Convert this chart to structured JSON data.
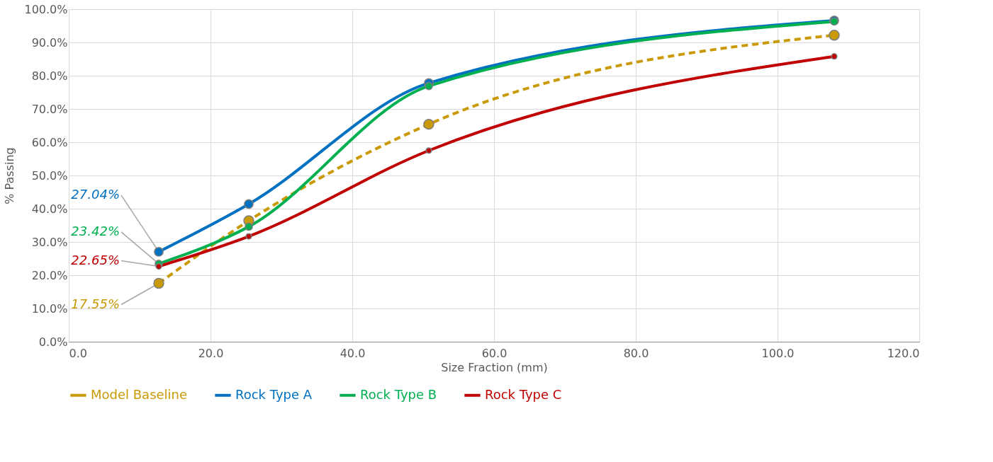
{
  "chart_data": {
    "type": "line",
    "xlabel": "Size Fraction (mm)",
    "ylabel": "% Passing",
    "series": [
      {
        "name": "Model Baseline",
        "color": "#c99a06",
        "line_style": "dashed",
        "x": [
          12.7,
          25.4,
          50.8,
          108
        ],
        "values": [
          17.55,
          36.4,
          65.4,
          92.2
        ],
        "value_labels": [
          "17.55%",
          null,
          null,
          null
        ]
      },
      {
        "name": "Rock Type A",
        "color": "#0070c0",
        "line_style": "solid",
        "x": [
          12.7,
          25.4,
          50.8,
          108
        ],
        "values": [
          27.04,
          41.4,
          77.8,
          96.6
        ],
        "value_labels": [
          "27.04%",
          null,
          null,
          null
        ]
      },
      {
        "name": "Rock Type B",
        "color": "#00b050",
        "line_style": "solid",
        "x": [
          12.7,
          25.4,
          50.8,
          108
        ],
        "values": [
          23.42,
          34.6,
          76.9,
          96.3
        ],
        "value_labels": [
          "23.42%",
          null,
          null,
          null
        ]
      },
      {
        "name": "Rock Type C",
        "color": "#c00000",
        "line_style": "solid",
        "x": [
          12.7,
          25.4,
          50.8,
          108
        ],
        "values": [
          22.65,
          31.7,
          57.5,
          85.8
        ],
        "value_labels": [
          "22.65%",
          null,
          null,
          null
        ]
      }
    ],
    "xlim": [
      0,
      120
    ],
    "ylim": [
      0,
      100
    ],
    "xticks": [
      {
        "value": 0,
        "label": "0.0"
      },
      {
        "value": 20,
        "label": "20.0"
      },
      {
        "value": 40,
        "label": "40.0"
      },
      {
        "value": 60,
        "label": "60.0"
      },
      {
        "value": 80,
        "label": "80.0"
      },
      {
        "value": 100,
        "label": "100.0"
      },
      {
        "value": 120,
        "label": "120.0"
      }
    ],
    "yticks": [
      {
        "value": 0,
        "label": "0.0%"
      },
      {
        "value": 10,
        "label": "10.0%"
      },
      {
        "value": 20,
        "label": "20.0%"
      },
      {
        "value": 30,
        "label": "30.0%"
      },
      {
        "value": 40,
        "label": "40.0%"
      },
      {
        "value": 50,
        "label": "50.0%"
      },
      {
        "value": 60,
        "label": "60.0%"
      },
      {
        "value": 70,
        "label": "70.0%"
      },
      {
        "value": 80,
        "label": "80.0%"
      },
      {
        "value": 90,
        "label": "90.0%"
      },
      {
        "value": 100,
        "label": "100.0%"
      }
    ],
    "grid": true,
    "legend": "bottom",
    "marker": "circle"
  }
}
